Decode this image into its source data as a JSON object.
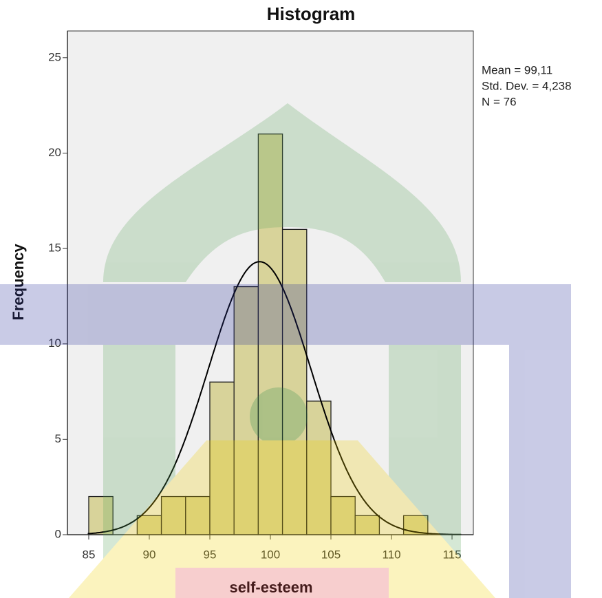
{
  "chart_data": {
    "type": "histogram",
    "title": "Histogram",
    "x_label": "self-esteem",
    "y_label": "Frequency",
    "bins": [
      85,
      87,
      89,
      91,
      93,
      95,
      97,
      99,
      101,
      103,
      105,
      107,
      109,
      111,
      113
    ],
    "values": [
      2,
      0,
      1,
      2,
      2,
      8,
      13,
      21,
      16,
      7,
      2,
      1,
      0,
      1
    ],
    "color": "#d8d39a",
    "xlim": [
      83.24,
      116.76
    ],
    "xticks": [
      85,
      90,
      95,
      100,
      105,
      110,
      115
    ],
    "ylim": [
      0,
      26.4
    ],
    "yticks": [
      0,
      5,
      10,
      15,
      20,
      25
    ],
    "stats": [
      {
        "value": 99.11,
        "label": "Mean = 99,11"
      },
      {
        "value": 4.238,
        "label": "Std. Dev. = 4,238"
      },
      {
        "value": 76,
        "label": "N = 76"
      }
    ],
    "curve_color": "#000000"
  }
}
